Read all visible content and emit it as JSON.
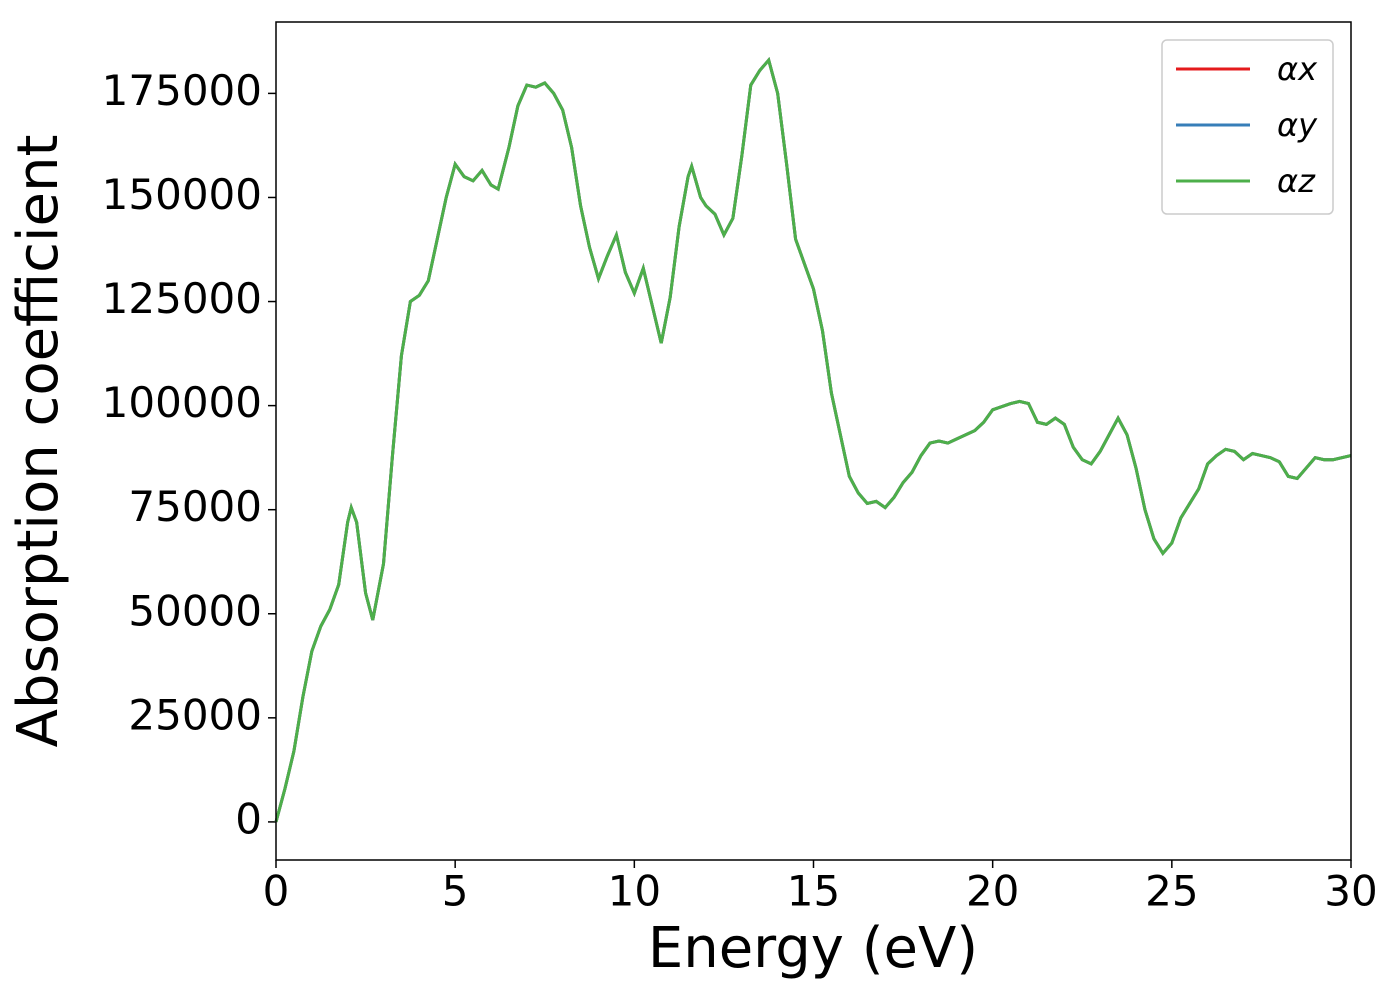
{
  "chart_data": {
    "type": "line",
    "xlabel": "Energy (eV)",
    "ylabel": "Absorption coefficient",
    "x": [
      0,
      0.25,
      0.5,
      0.75,
      1.0,
      1.25,
      1.5,
      1.75,
      2.0,
      2.1,
      2.25,
      2.5,
      2.7,
      3.0,
      3.25,
      3.5,
      3.75,
      4.0,
      4.25,
      4.5,
      4.75,
      5.0,
      5.25,
      5.5,
      5.75,
      6.0,
      6.2,
      6.5,
      6.75,
      7.0,
      7.25,
      7.5,
      7.75,
      8.0,
      8.25,
      8.5,
      8.75,
      9.0,
      9.25,
      9.5,
      9.75,
      10.0,
      10.25,
      10.5,
      10.75,
      11.0,
      11.25,
      11.5,
      11.6,
      11.85,
      12.0,
      12.25,
      12.5,
      12.75,
      13.0,
      13.25,
      13.5,
      13.75,
      14.0,
      14.25,
      14.5,
      14.75,
      15.0,
      15.25,
      15.5,
      15.75,
      16.0,
      16.25,
      16.5,
      16.75,
      17.0,
      17.25,
      17.5,
      17.75,
      18.0,
      18.25,
      18.5,
      18.75,
      19.0,
      19.5,
      19.75,
      20.0,
      20.5,
      20.75,
      21.0,
      21.25,
      21.5,
      21.75,
      22.0,
      22.25,
      22.5,
      22.75,
      23.0,
      23.25,
      23.5,
      23.75,
      24.0,
      24.25,
      24.5,
      24.75,
      25.0,
      25.25,
      25.5,
      25.75,
      26.0,
      26.25,
      26.5,
      26.75,
      27.0,
      27.25,
      27.5,
      27.75,
      28.0,
      28.25,
      28.5,
      28.75,
      29.0,
      29.25,
      29.5,
      30.0
    ],
    "series": [
      {
        "name": "αx",
        "color": "#e41a1c",
        "values": [
          0,
          8000,
          17000,
          30000,
          41000,
          47000,
          51000,
          57000,
          72000,
          75500,
          72000,
          55000,
          48500,
          62000,
          88000,
          112000,
          125000,
          126500,
          130000,
          140000,
          150000,
          158000,
          155000,
          154000,
          156500,
          153000,
          152000,
          162000,
          172000,
          177000,
          176500,
          177500,
          175000,
          171000,
          162000,
          148000,
          138000,
          130500,
          136000,
          141000,
          132000,
          127000,
          133000,
          124000,
          115000,
          126000,
          143000,
          155000,
          157500,
          150000,
          148000,
          146000,
          141000,
          145000,
          160000,
          177000,
          180500,
          183000,
          175000,
          158000,
          140000,
          134000,
          128000,
          118000,
          103000,
          93000,
          83000,
          79000,
          76500,
          77000,
          75500,
          78000,
          81500,
          84000,
          88000,
          91000,
          91500,
          91000,
          92000,
          94000,
          96000,
          99000,
          100500,
          101000,
          100500,
          96000,
          95500,
          97000,
          95500,
          90000,
          87000,
          86000,
          89000,
          93000,
          97000,
          93000,
          85000,
          75000,
          68000,
          64500,
          67000,
          73000,
          76500,
          80000,
          86000,
          88000,
          89500,
          89000,
          87000,
          88500,
          88000,
          87500,
          86500,
          83000,
          82500,
          85000,
          87500,
          87000,
          87000,
          88000
        ]
      },
      {
        "name": "αy",
        "color": "#377eb8",
        "values": [
          0,
          8000,
          17000,
          30000,
          41000,
          47000,
          51000,
          57000,
          72000,
          75500,
          72000,
          55000,
          48500,
          62000,
          88000,
          112000,
          125000,
          126500,
          130000,
          140000,
          150000,
          158000,
          155000,
          154000,
          156500,
          153000,
          152000,
          162000,
          172000,
          177000,
          176500,
          177500,
          175000,
          171000,
          162000,
          148000,
          138000,
          130500,
          136000,
          141000,
          132000,
          127000,
          133000,
          124000,
          115000,
          126000,
          143000,
          155000,
          157500,
          150000,
          148000,
          146000,
          141000,
          145000,
          160000,
          177000,
          180500,
          183000,
          175000,
          158000,
          140000,
          134000,
          128000,
          118000,
          103000,
          93000,
          83000,
          79000,
          76500,
          77000,
          75500,
          78000,
          81500,
          84000,
          88000,
          91000,
          91500,
          91000,
          92000,
          94000,
          96000,
          99000,
          100500,
          101000,
          100500,
          96000,
          95500,
          97000,
          95500,
          90000,
          87000,
          86000,
          89000,
          93000,
          97000,
          93000,
          85000,
          75000,
          68000,
          64500,
          67000,
          73000,
          76500,
          80000,
          86000,
          88000,
          89500,
          89000,
          87000,
          88500,
          88000,
          87500,
          86500,
          83000,
          82500,
          85000,
          87500,
          87000,
          87000,
          88000
        ]
      },
      {
        "name": "αz",
        "color": "#4daf4a",
        "values": [
          0,
          8000,
          17000,
          30000,
          41000,
          47000,
          51000,
          57000,
          72000,
          75500,
          72000,
          55000,
          48500,
          62000,
          88000,
          112000,
          125000,
          126500,
          130000,
          140000,
          150000,
          158000,
          155000,
          154000,
          156500,
          153000,
          152000,
          162000,
          172000,
          177000,
          176500,
          177500,
          175000,
          171000,
          162000,
          148000,
          138000,
          130500,
          136000,
          141000,
          132000,
          127000,
          133000,
          124000,
          115000,
          126000,
          143000,
          155000,
          157500,
          150000,
          148000,
          146000,
          141000,
          145000,
          160000,
          177000,
          180500,
          183000,
          175000,
          158000,
          140000,
          134000,
          128000,
          118000,
          103000,
          93000,
          83000,
          79000,
          76500,
          77000,
          75500,
          78000,
          81500,
          84000,
          88000,
          91000,
          91500,
          91000,
          92000,
          94000,
          96000,
          99000,
          100500,
          101000,
          100500,
          96000,
          95500,
          97000,
          95500,
          90000,
          87000,
          86000,
          89000,
          93000,
          97000,
          93000,
          85000,
          75000,
          68000,
          64500,
          67000,
          73000,
          76500,
          80000,
          86000,
          88000,
          89500,
          89000,
          87000,
          88500,
          88000,
          87500,
          86500,
          83000,
          82500,
          85000,
          87500,
          87000,
          87000,
          88000
        ]
      }
    ],
    "xlim": [
      0,
      30
    ],
    "xticks": [
      0,
      5,
      10,
      15,
      20,
      25,
      30
    ],
    "ylim": [
      -9150,
      192150
    ],
    "yticks": [
      0,
      25000,
      50000,
      75000,
      100000,
      125000,
      150000,
      175000
    ],
    "legend": "upper right"
  }
}
